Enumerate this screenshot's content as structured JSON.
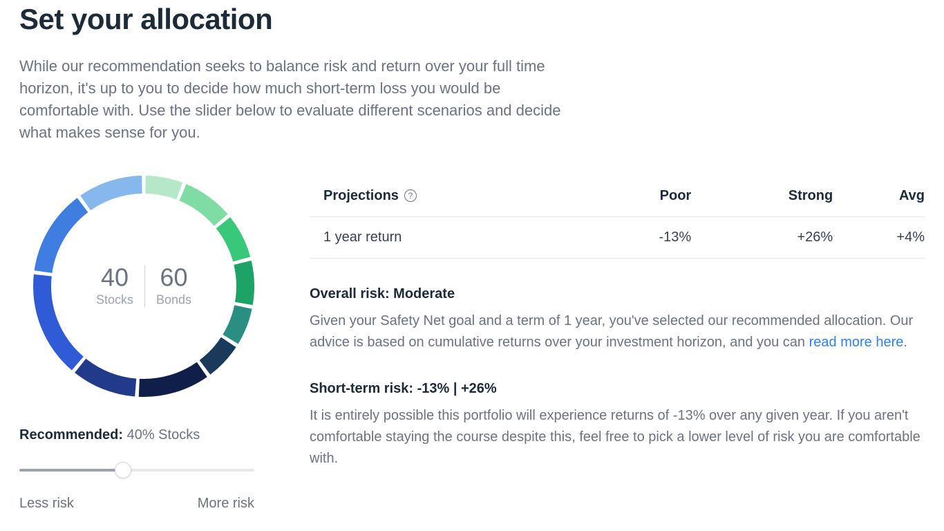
{
  "header": {
    "title": "Set your allocation",
    "intro": "While our recommendation seeks to balance risk and return over your full time horizon, it's up to you to decide how much short-term loss you would be comfortable with. Use the slider below to evaluate different scenarios and decide what makes sense for you."
  },
  "donut": {
    "stocks_value": "40",
    "stocks_label": "Stocks",
    "bonds_value": "60",
    "bonds_label": "Bonds",
    "ring_thickness": 26,
    "radius_outer": 160,
    "segments": [
      {
        "fraction": 0.06,
        "color": "#b5e8c9"
      },
      {
        "fraction": 0.08,
        "color": "#7fdca4"
      },
      {
        "fraction": 0.07,
        "color": "#39c77a"
      },
      {
        "fraction": 0.07,
        "color": "#1ea367"
      },
      {
        "fraction": 0.06,
        "color": "#2a8f82"
      },
      {
        "fraction": 0.06,
        "color": "#1b3a5b"
      },
      {
        "fraction": 0.11,
        "color": "#101f4a"
      },
      {
        "fraction": 0.1,
        "color": "#223a8a"
      },
      {
        "fraction": 0.16,
        "color": "#2f5bd7"
      },
      {
        "fraction": 0.13,
        "color": "#3f7de0"
      },
      {
        "fraction": 0.1,
        "color": "#86b8ed"
      }
    ]
  },
  "slider": {
    "recommended_label": "Recommended:",
    "recommended_value": "40% Stocks",
    "position_percent": 44,
    "min_label": "Less risk",
    "max_label": "More risk"
  },
  "projections": {
    "header_label": "Projections",
    "columns": [
      "Poor",
      "Strong",
      "Avg"
    ],
    "rows": [
      {
        "label": "1 year return",
        "values": [
          "-13%",
          "+26%",
          "+4%"
        ]
      }
    ]
  },
  "overall_risk": {
    "heading": "Overall risk: Moderate",
    "body_before_link": "Given your Safety Net goal and a term of 1 year, you've selected our recommended allocation. Our advice is based on cumulative returns over your investment horizon, and you can ",
    "link_text": "read more here",
    "body_after_link": "."
  },
  "short_term_risk": {
    "heading": "Short-term risk: -13% | +26%",
    "body": "It is entirely possible this portfolio will experience returns of -13% over any given year. If you aren't comfortable staying the course despite this, feel free to pick a lower level of risk you are comfortable with."
  },
  "colors": {
    "text_primary": "#1d2a38",
    "text_muted": "#6b7280",
    "link": "#2f80ed",
    "border": "#e5e7eb"
  }
}
